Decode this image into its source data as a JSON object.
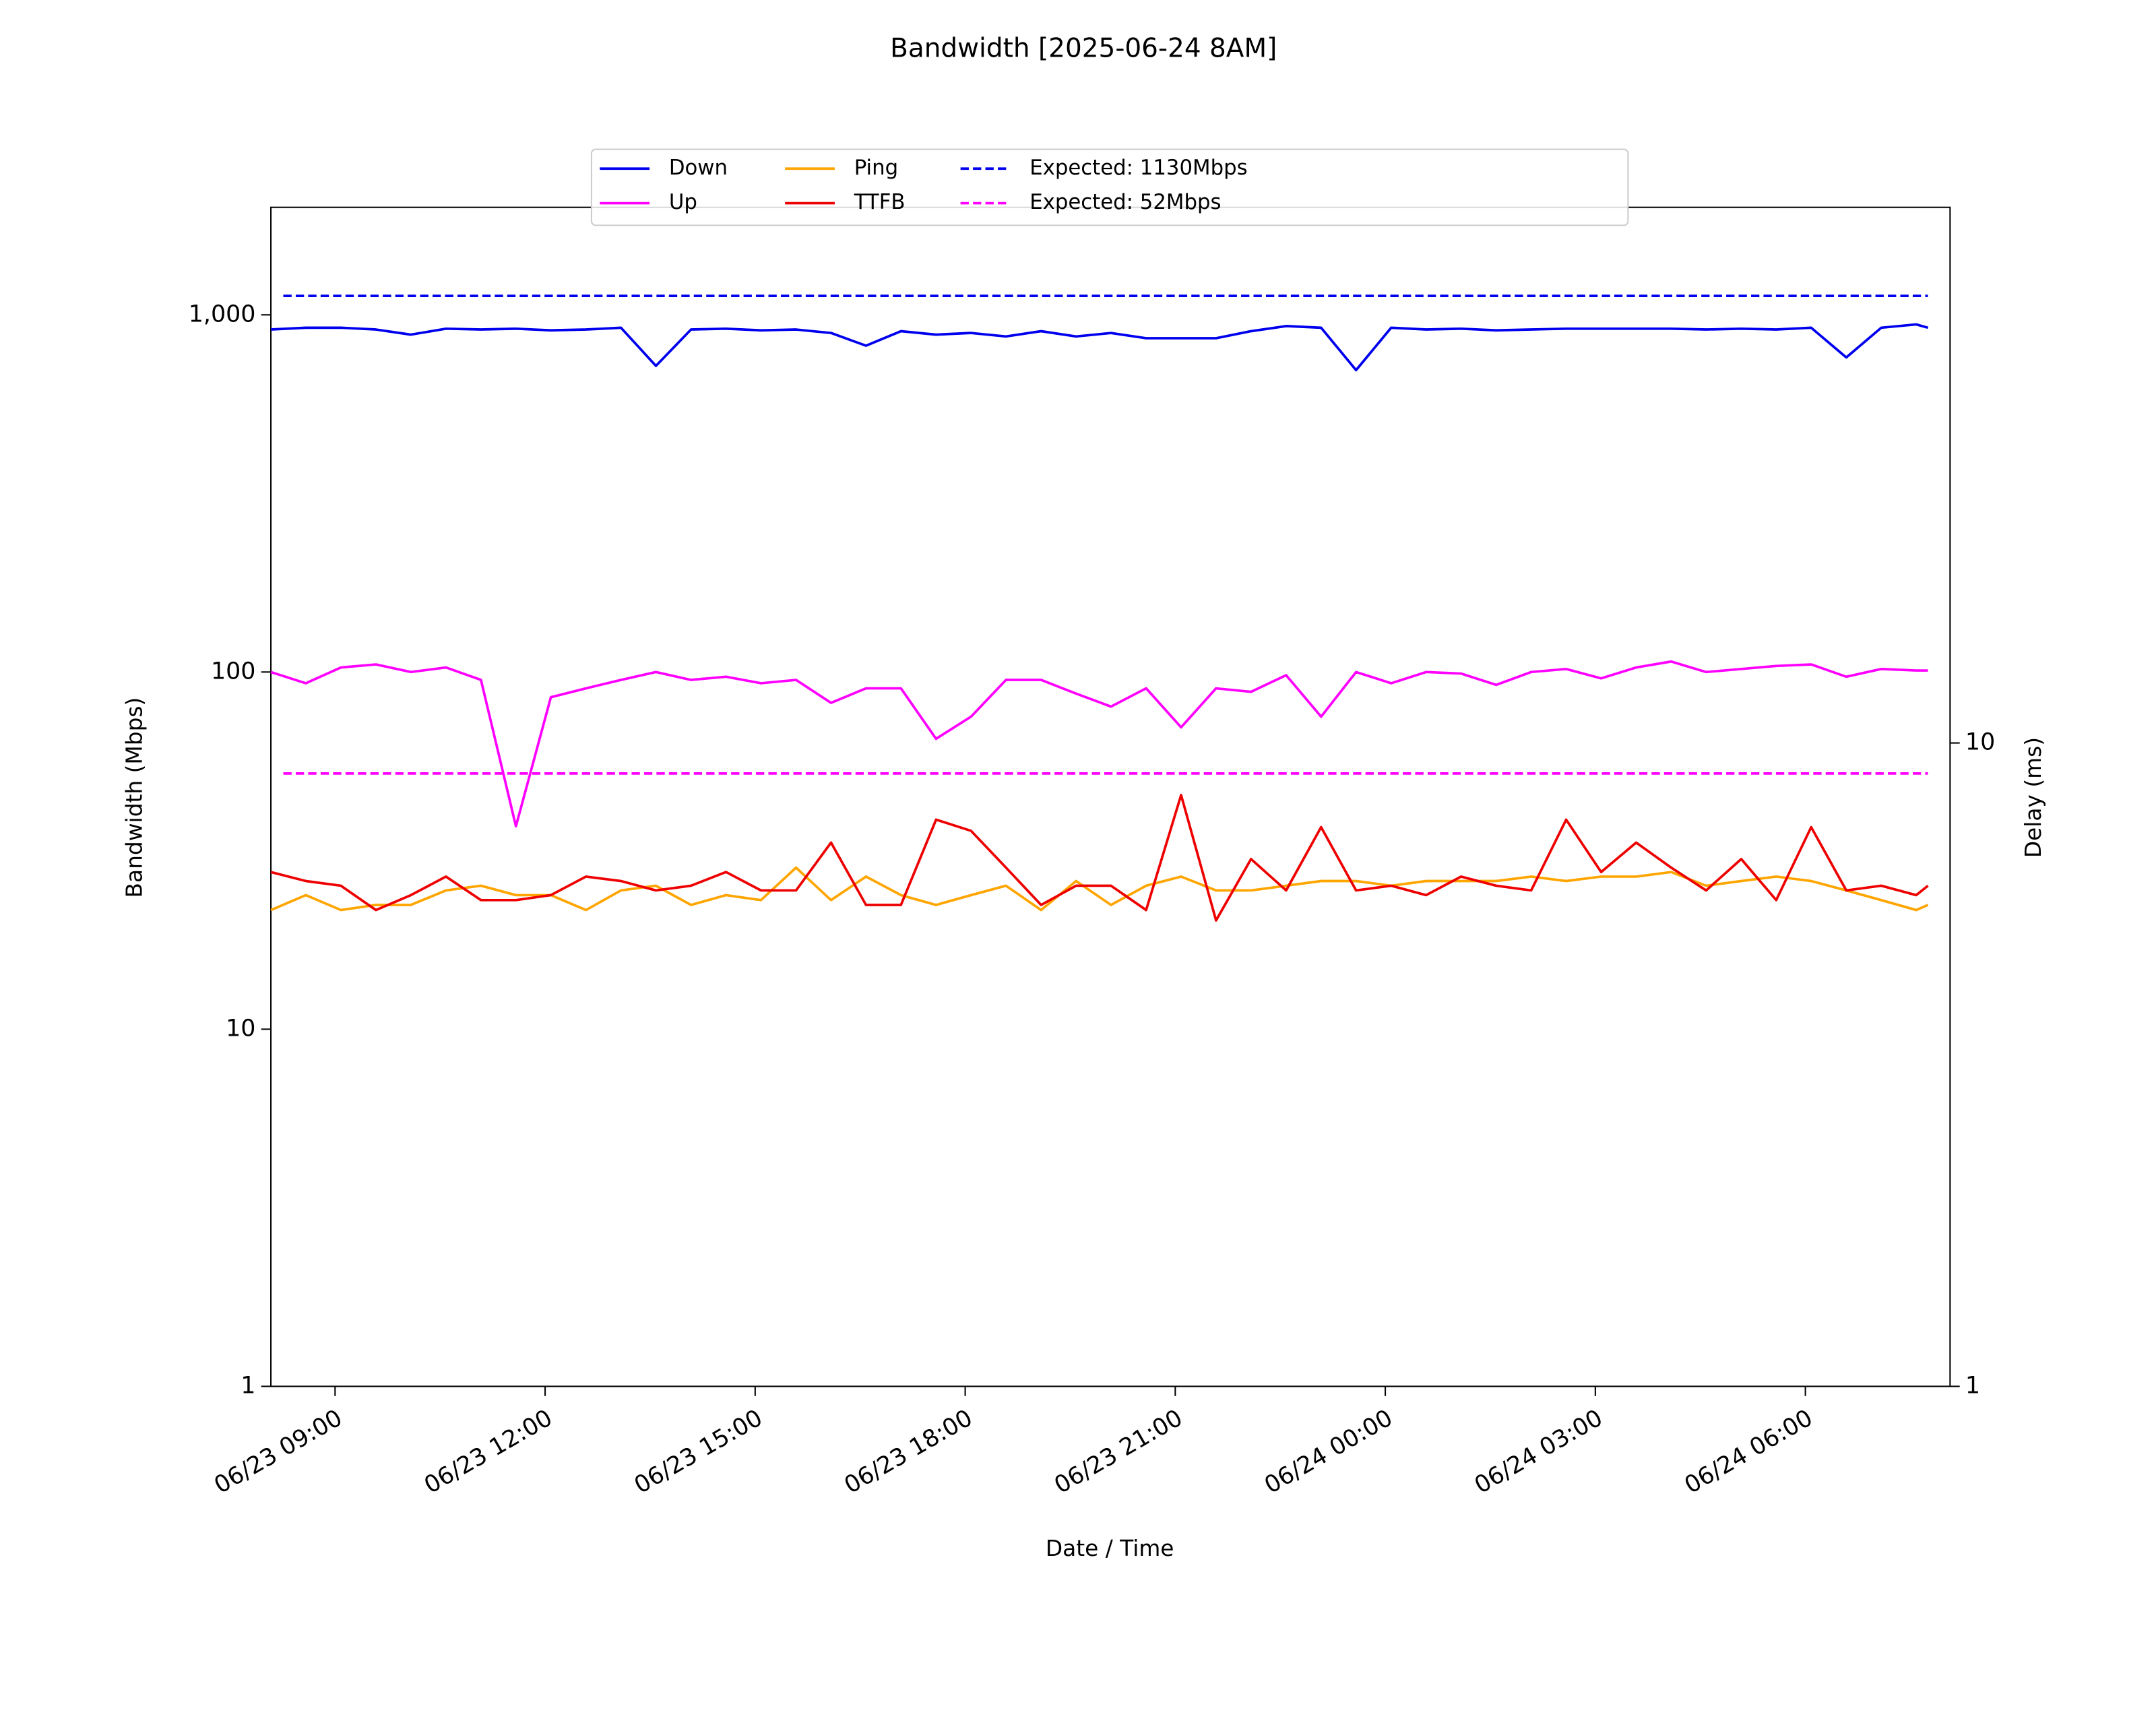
{
  "chart_data": {
    "type": "line",
    "title": "Bandwidth [2025-06-24 8AM]",
    "xlabel": "Date / Time",
    "ylabel": "Bandwidth (Mbps)",
    "y2label": "Delay (ms)",
    "x": [
      "06/23 08:05",
      "06/23 08:35",
      "06/23 09:05",
      "06/23 09:35",
      "06/23 10:05",
      "06/23 10:35",
      "06/23 11:05",
      "06/23 11:35",
      "06/23 12:05",
      "06/23 12:35",
      "06/23 13:05",
      "06/23 13:35",
      "06/23 14:05",
      "06/23 14:35",
      "06/23 15:05",
      "06/23 15:35",
      "06/23 16:05",
      "06/23 16:35",
      "06/23 17:05",
      "06/23 17:35",
      "06/23 18:05",
      "06/23 18:35",
      "06/23 19:05",
      "06/23 19:35",
      "06/23 20:05",
      "06/23 20:35",
      "06/23 21:05",
      "06/23 21:35",
      "06/23 22:05",
      "06/23 22:35",
      "06/23 23:05",
      "06/23 23:35",
      "06/24 00:05",
      "06/24 00:35",
      "06/24 01:05",
      "06/24 01:35",
      "06/24 02:05",
      "06/24 02:35",
      "06/24 03:05",
      "06/24 03:35",
      "06/24 04:05",
      "06/24 04:35",
      "06/24 05:05",
      "06/24 05:35",
      "06/24 06:05",
      "06/24 06:35",
      "06/24 07:05",
      "06/24 07:35",
      "06/24 07:45"
    ],
    "series": [
      {
        "name": "Down",
        "color": "#0000ee",
        "values": [
          910,
          920,
          920,
          910,
          880,
          915,
          910,
          915,
          905,
          910,
          920,
          720,
          910,
          915,
          905,
          910,
          890,
          820,
          900,
          880,
          890,
          870,
          900,
          870,
          890,
          860,
          860,
          860,
          900,
          930,
          920,
          700,
          920,
          910,
          915,
          905,
          910,
          915,
          915,
          915,
          915,
          910,
          915,
          910,
          920,
          760,
          920,
          940,
          920
        ]
      },
      {
        "name": "Up",
        "color": "#ff00ff",
        "values": [
          100,
          93,
          103,
          105,
          100,
          103,
          95,
          37,
          85,
          90,
          95,
          100,
          95,
          97,
          93,
          95,
          82,
          90,
          90,
          65,
          75,
          95,
          95,
          87,
          80,
          90,
          70,
          90,
          88,
          98,
          75,
          100,
          93,
          100,
          99,
          92,
          100,
          102,
          96,
          103,
          107,
          100,
          102,
          104,
          105,
          97,
          102,
          101,
          101
        ]
      },
      {
        "name": "Ping",
        "color": "#ffa500",
        "axis": "y2",
        "values": [
          5.5,
          5.8,
          5.5,
          5.6,
          5.6,
          5.9,
          6.0,
          5.8,
          5.8,
          5.5,
          5.9,
          6.0,
          5.6,
          5.8,
          5.7,
          6.4,
          5.7,
          6.2,
          5.8,
          5.6,
          5.8,
          6.0,
          5.5,
          6.1,
          5.6,
          6.0,
          6.2,
          5.9,
          5.9,
          6.0,
          6.1,
          6.1,
          6.0,
          6.1,
          6.1,
          6.1,
          6.2,
          6.1,
          6.2,
          6.2,
          6.3,
          6.0,
          6.1,
          6.2,
          6.1,
          5.9,
          5.7,
          5.5,
          5.6
        ]
      },
      {
        "name": "TTFB",
        "color": "#ee0000",
        "axis": "y2",
        "values": [
          6.3,
          6.1,
          6.0,
          5.5,
          5.8,
          6.2,
          5.7,
          5.7,
          5.8,
          6.2,
          6.1,
          5.9,
          6.0,
          6.3,
          5.9,
          5.9,
          7.0,
          5.6,
          5.6,
          7.6,
          7.3,
          6.4,
          5.6,
          6.0,
          6.0,
          5.5,
          8.3,
          5.3,
          6.6,
          5.9,
          7.4,
          5.9,
          6.0,
          5.8,
          6.2,
          6.0,
          5.9,
          7.6,
          6.3,
          7.0,
          6.4,
          5.9,
          6.6,
          5.7,
          7.4,
          5.9,
          6.0,
          5.8,
          6.0
        ]
      }
    ],
    "reference_lines": [
      {
        "name": "Expected: 1130Mbps",
        "value": 1130,
        "color": "#0000ee",
        "style": "dashed"
      },
      {
        "name": "Expected: 52Mbps",
        "value": 52,
        "color": "#ff00ff",
        "style": "dashed"
      }
    ],
    "xlim": [
      "06/23 08:05",
      "06/24 08:04"
    ],
    "xticks": [
      "06/23 09:00",
      "06/23 12:00",
      "06/23 15:00",
      "06/23 18:00",
      "06/23 21:00",
      "06/24 00:00",
      "06/24 03:00",
      "06/24 06:00"
    ],
    "yscale": "log",
    "ylim": [
      1,
      2000
    ],
    "yticks": [
      1,
      10,
      100,
      {
        "value": 1000,
        "label": "1,000"
      }
    ],
    "y2scale": "log",
    "y2lim": [
      1,
      68
    ],
    "y2ticks": [
      1,
      10
    ],
    "legend": "upper center"
  }
}
